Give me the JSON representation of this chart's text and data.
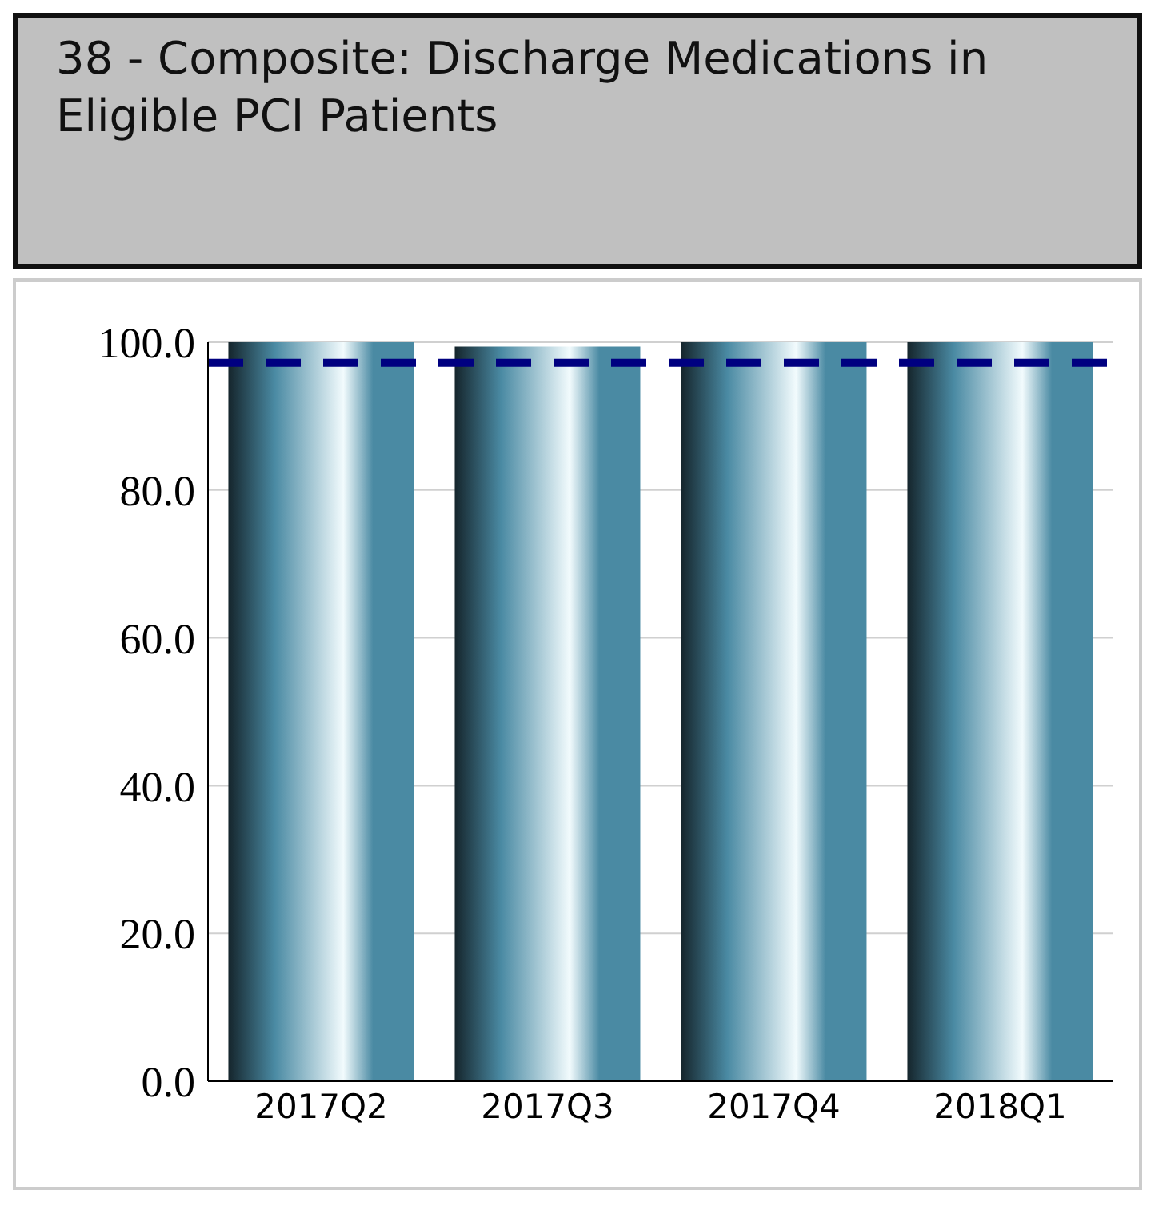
{
  "chart_data": {
    "type": "bar",
    "title": "38 - Composite: Discharge Medications in Eligible PCI Patients",
    "categories": [
      "2017Q2",
      "2017Q3",
      "2017Q4",
      "2018Q1"
    ],
    "values": [
      100,
      99.4,
      100,
      100
    ],
    "color": "#4a8aa3",
    "ylim": [
      0,
      100
    ],
    "yticks": [
      {
        "value": 0,
        "label": "0.0"
      },
      {
        "value": 20,
        "label": "20.0"
      },
      {
        "value": 40,
        "label": "40.0"
      },
      {
        "value": 60,
        "label": "60.0"
      },
      {
        "value": 80,
        "label": "80.0"
      },
      {
        "value": 100,
        "label": "100.0"
      }
    ],
    "grid": "y",
    "ref_lines": [
      {
        "axis": "y",
        "value": 97.2,
        "color": "#000080",
        "line_style": "dashed"
      }
    ]
  }
}
